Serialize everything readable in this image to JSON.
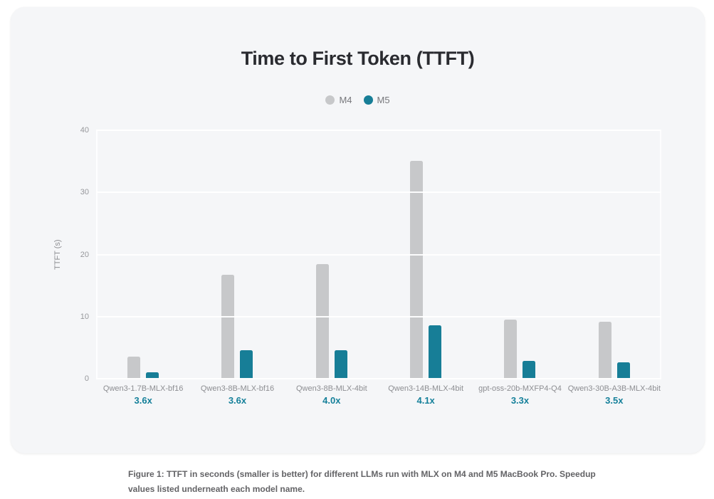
{
  "chart_data": {
    "type": "bar",
    "title": "Time to First Token (TTFT)",
    "xlabel": "",
    "ylabel": "TTFT (s)",
    "ylim": [
      0,
      40
    ],
    "yticks": [
      0,
      10,
      20,
      30,
      40
    ],
    "grid": true,
    "legend_position": "top",
    "categories": [
      "Qwen3-1.7B-MLX-bf16",
      "Qwen3-8B-MLX-bf16",
      "Qwen3-8B-MLX-4bit",
      "Qwen3-14B-MLX-4bit",
      "gpt-oss-20b-MXFP4-Q4",
      "Qwen3-30B-A3B-MLX-4bit"
    ],
    "speedups": [
      "3.6x",
      "3.6x",
      "4.0x",
      "4.1x",
      "3.3x",
      "3.5x"
    ],
    "series": [
      {
        "name": "M4",
        "color": "#c7c8ca",
        "values": [
          3.6,
          16.7,
          18.5,
          35.1,
          9.5,
          9.2
        ]
      },
      {
        "name": "M5",
        "color": "#177e97",
        "values": [
          1.0,
          4.6,
          4.6,
          8.6,
          2.9,
          2.6
        ]
      }
    ],
    "accent_color": "#15809a",
    "title_color": "#2a2b30",
    "card_background": "#f5f6f8"
  },
  "caption": {
    "line1": "Figure 1: TTFT in seconds (smaller is better) for different LLMs run with MLX on M4 and M5 MacBook Pro. Speedup",
    "line2": "values listed underneath each model name."
  }
}
